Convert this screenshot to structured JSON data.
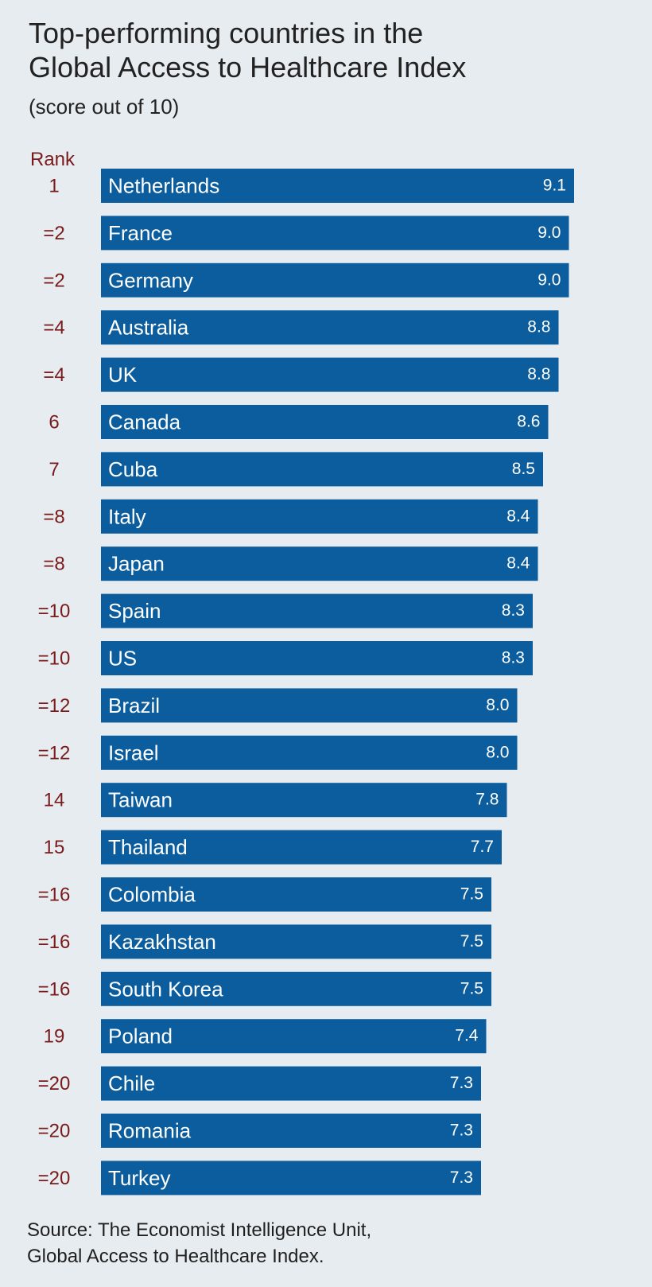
{
  "title_lines": [
    "Top-performing countries in the",
    "Global Access to Healthcare Index"
  ],
  "subtitle": "(score out of 10)",
  "rank_header": "Rank",
  "source_lines": [
    "Source: The Economist Intelligence Unit,",
    "Global Access to Healthcare Index."
  ],
  "colors": {
    "bar": "#0b5d9e",
    "rank_text": "#7a1a1a",
    "background": "#e7ecf0"
  },
  "chart_data": {
    "type": "bar",
    "orientation": "horizontal",
    "title": "Top-performing countries in the Global Access to Healthcare Index",
    "subtitle": "(score out of 10)",
    "xlim": [
      0,
      10
    ],
    "grid": false,
    "categories": [
      "Netherlands",
      "France",
      "Germany",
      "Australia",
      "UK",
      "Canada",
      "Cuba",
      "Italy",
      "Japan",
      "Spain",
      "US",
      "Brazil",
      "Israel",
      "Taiwan",
      "Thailand",
      "Colombia",
      "Kazakhstan",
      "South Korea",
      "Poland",
      "Chile",
      "Romania",
      "Turkey"
    ],
    "ranks": [
      "1",
      "=2",
      "=2",
      "=4",
      "=4",
      "6",
      "7",
      "=8",
      "=8",
      "=10",
      "=10",
      "=12",
      "=12",
      "14",
      "15",
      "=16",
      "=16",
      "=16",
      "19",
      "=20",
      "=20",
      "=20"
    ],
    "values": [
      9.1,
      9.0,
      9.0,
      8.8,
      8.8,
      8.6,
      8.5,
      8.4,
      8.4,
      8.3,
      8.3,
      8.0,
      8.0,
      7.8,
      7.7,
      7.5,
      7.5,
      7.5,
      7.4,
      7.3,
      7.3,
      7.3
    ],
    "value_labels": [
      "9.1",
      "9.0",
      "9.0",
      "8.8",
      "8.8",
      "8.6",
      "8.5",
      "8.4",
      "8.4",
      "8.3",
      "8.3",
      "8.0",
      "8.0",
      "7.8",
      "7.7",
      "7.5",
      "7.5",
      "7.5",
      "7.4",
      "7.3",
      "7.3",
      "7.3"
    ]
  }
}
